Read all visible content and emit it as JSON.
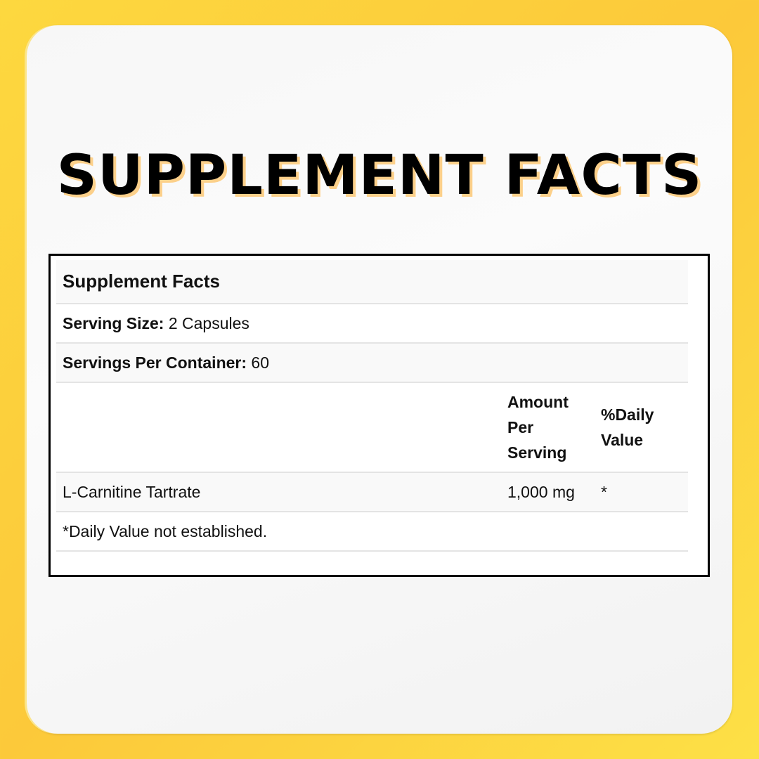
{
  "heading": "SUPPLEMENT FACTS",
  "facts": {
    "title": "Supplement Facts",
    "serving_size_label": "Serving Size:",
    "serving_size_value": "2 Capsules",
    "servings_per_container_label": "Servings Per Container:",
    "servings_per_container_value": "60",
    "columns": {
      "amount": "Amount Per Serving",
      "daily_value": "%Daily Value"
    },
    "ingredients": [
      {
        "name": "L-Carnitine Tartrate",
        "amount": "1,000 mg",
        "daily_value": "*"
      }
    ],
    "footnote": "*Daily Value not established."
  },
  "colors": {
    "background": "#fdd83f",
    "title_shadow": "#fcd08a"
  }
}
